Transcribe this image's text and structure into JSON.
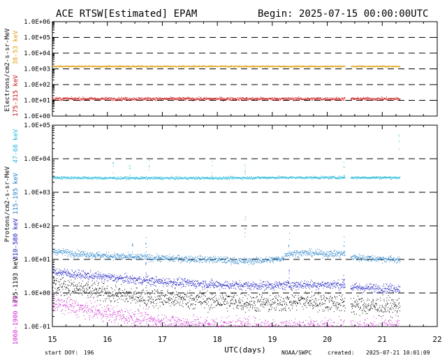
{
  "header": {
    "title": "ACE RTSW[Estimated] EPAM",
    "begin": "Begin: 2025-07-15 00:00:00UTC"
  },
  "footer": {
    "start_doy_label": "start DOY:",
    "start_doy": "196",
    "agency": "NOAA/SWPC",
    "created_label": "created:",
    "created": "2025-07-21 10:01:09"
  },
  "chart_data": [
    {
      "type": "scatter",
      "ylabel": "Electrons/cm2-s-sr-MeV",
      "yscale": "log",
      "ylim": [
        1,
        1000000
      ],
      "yticks": [
        "1.0E+00",
        "1.0E+01",
        "1.0E+02",
        "1.0E+03",
        "1.0E+04",
        "1.0E+05",
        "1.0E+06"
      ],
      "grid": "dashed",
      "series": [
        {
          "name": "38-53 keV",
          "color": "#e0a010",
          "level": 1500,
          "spread": 0.05,
          "spikes": []
        },
        {
          "name": "175-315 keV",
          "color": "#c81010",
          "level": 13,
          "spread": 0.1,
          "spikes": []
        }
      ]
    },
    {
      "type": "scatter",
      "ylabel": "Protons/cm2-s-sr-MeV",
      "yscale": "log",
      "ylim": [
        0.1,
        100000
      ],
      "yticks": [
        "1.0E-01",
        "1.0E+00",
        "1.0E+01",
        "1.0E+02",
        "1.0E+03",
        "1.0E+04",
        "1.0E+05"
      ],
      "grid": "dashed",
      "xlabel": "UTC(days)",
      "xlim": [
        15,
        22
      ],
      "xticks": [
        "15",
        "16",
        "17",
        "18",
        "19",
        "20",
        "21",
        "22"
      ],
      "series": [
        {
          "name": "47-68 keV",
          "color": "#20b8d8",
          "profile": [
            [
              15,
              2800
            ],
            [
              16,
              2700
            ],
            [
              17,
              2700
            ],
            [
              18,
              2700
            ],
            [
              19,
              2800
            ],
            [
              20,
              2800
            ],
            [
              21,
              2800
            ],
            [
              21.3,
              2800
            ]
          ],
          "spread": 0.04,
          "spikes": [
            [
              16.1,
              8000
            ],
            [
              16.4,
              7000
            ],
            [
              16.75,
              9000
            ],
            [
              17.9,
              9000
            ],
            [
              18.5,
              7000
            ],
            [
              20.3,
              8000
            ],
            [
              21.3,
              60000
            ]
          ]
        },
        {
          "name": "115-195 keV",
          "color": "#2080c8",
          "profile": [
            [
              15,
              18
            ],
            [
              15.5,
              15
            ],
            [
              16,
              13
            ],
            [
              16.5,
              12
            ],
            [
              17,
              11
            ],
            [
              17.5,
              10.5
            ],
            [
              18,
              10
            ],
            [
              18.5,
              9
            ],
            [
              19,
              10
            ],
            [
              19.2,
              11
            ],
            [
              19.25,
              15
            ],
            [
              19.6,
              16
            ],
            [
              20,
              15
            ],
            [
              20.3,
              15
            ],
            [
              20.4,
              12
            ],
            [
              20.8,
              11
            ],
            [
              21.3,
              10
            ]
          ],
          "spread": 0.1,
          "spikes": [
            [
              16.45,
              30
            ],
            [
              16.7,
              60
            ],
            [
              18.5,
              200
            ],
            [
              19.3,
              300
            ],
            [
              20.3,
              50
            ]
          ]
        },
        {
          "name": "310-580 keV",
          "color": "#1818c0",
          "profile": [
            [
              15,
              4.5
            ],
            [
              15.5,
              3.5
            ],
            [
              16,
              3
            ],
            [
              16.5,
              2.5
            ],
            [
              17,
              2.2
            ],
            [
              17.5,
              2
            ],
            [
              18,
              1.8
            ],
            [
              18.5,
              1.7
            ],
            [
              19,
              1.7
            ],
            [
              19.5,
              1.8
            ],
            [
              20,
              1.8
            ],
            [
              20.3,
              1.8
            ],
            [
              20.4,
              1.5
            ],
            [
              21,
              1.4
            ],
            [
              21.3,
              1.4
            ]
          ],
          "spread": 0.13,
          "spikes": [
            [
              16.7,
              12
            ],
            [
              19.3,
              6
            ],
            [
              20.3,
              5
            ]
          ]
        },
        {
          "name": "795-1193 keV",
          "color": "#000000",
          "profile": [
            [
              15,
              1.8
            ],
            [
              15.5,
              1.3
            ],
            [
              16,
              1.0
            ],
            [
              16.5,
              0.8
            ],
            [
              17,
              0.7
            ],
            [
              17.5,
              0.65
            ],
            [
              18,
              0.6
            ],
            [
              18.5,
              0.55
            ],
            [
              19,
              0.5
            ],
            [
              19.5,
              0.6
            ],
            [
              20,
              0.55
            ],
            [
              20.3,
              0.5
            ],
            [
              20.4,
              0.45
            ],
            [
              21,
              0.4
            ],
            [
              21.3,
              0.4
            ]
          ],
          "spread": 0.28,
          "spikes": []
        },
        {
          "name": "1060-1900 keV",
          "color": "#d020d0",
          "profile": [
            [
              15,
              0.5
            ],
            [
              15.5,
              0.35
            ],
            [
              16,
              0.25
            ],
            [
              16.5,
              0.18
            ],
            [
              17,
              0.14
            ],
            [
              17.5,
              0.12
            ],
            [
              18,
              0.11
            ],
            [
              19,
              0.1
            ],
            [
              20,
              0.1
            ],
            [
              21,
              0.1
            ]
          ],
          "spread": 0.25,
          "spikes": []
        }
      ]
    }
  ]
}
